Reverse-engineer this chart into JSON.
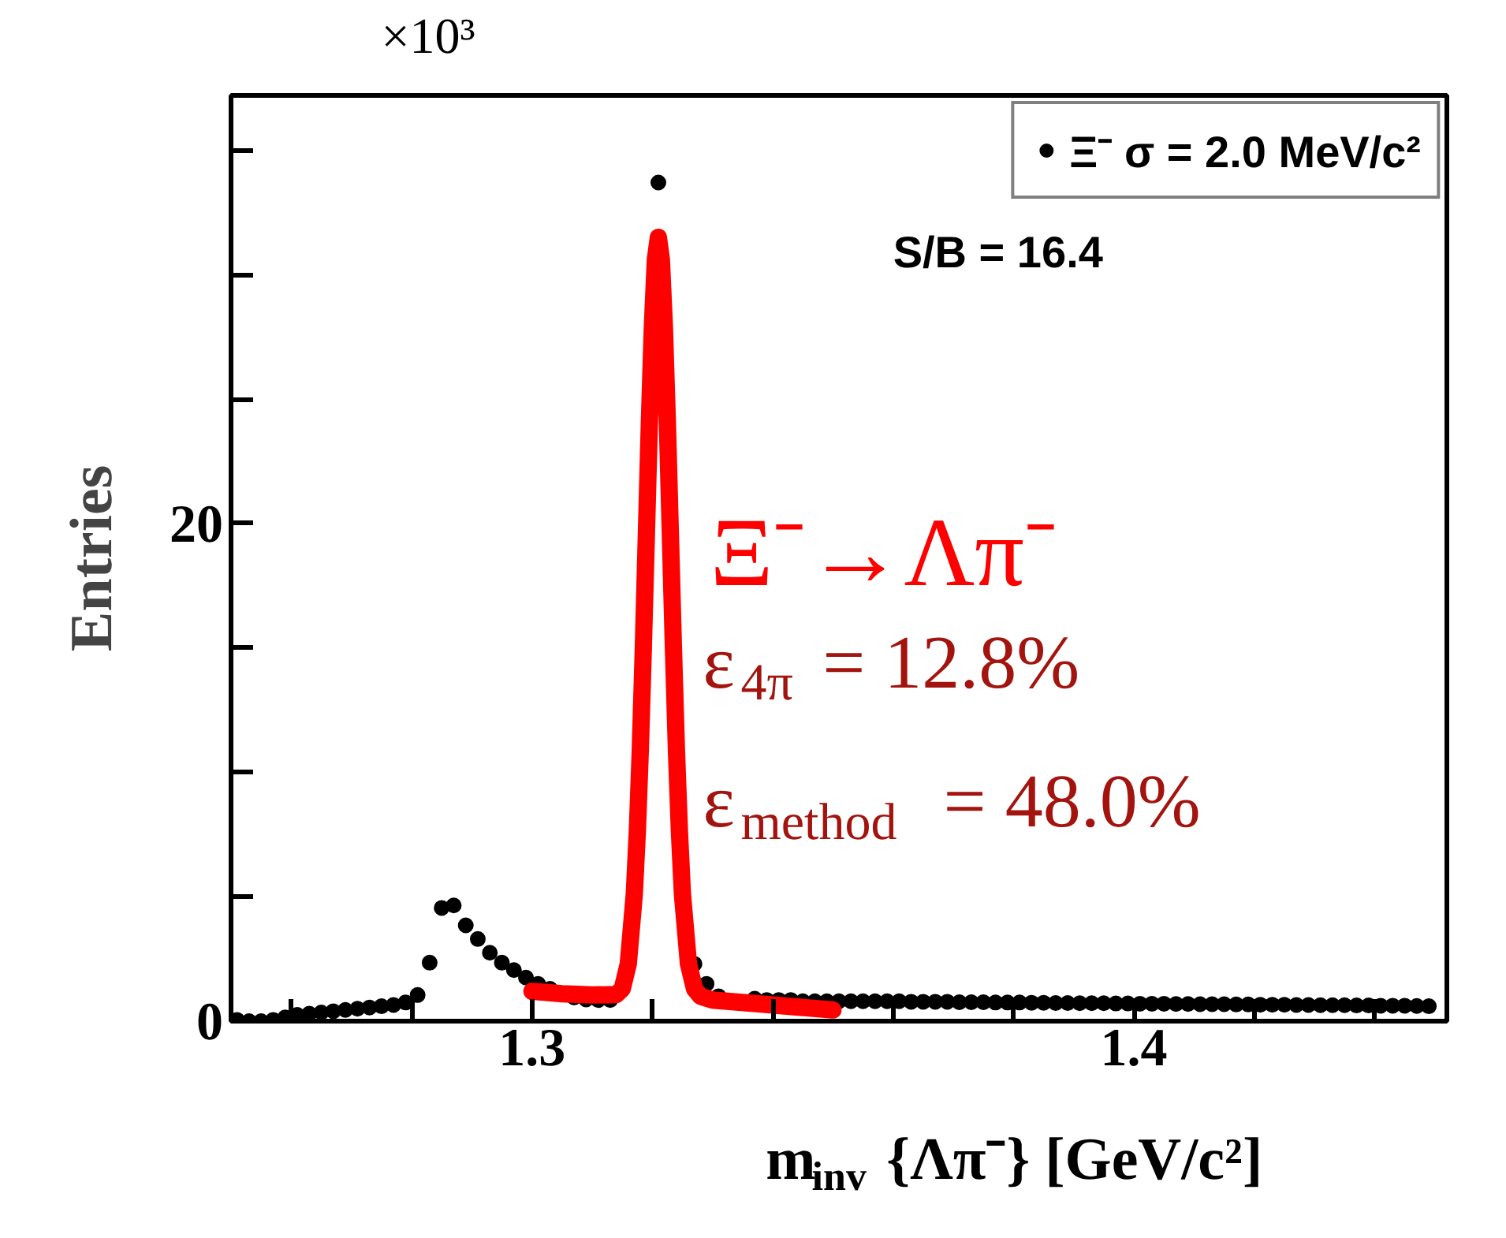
{
  "chart_data": {
    "type": "scatter",
    "xlabel": "m$_{inv}$ {Λπ⁻} [GeV/c²]",
    "ylabel": "Entries",
    "xlim": [
      1.25,
      1.452
    ],
    "ylim": [
      0,
      37.2
    ],
    "xticks": [
      {
        "value": 1.26,
        "label": null
      },
      {
        "value": 1.28,
        "label": null
      },
      1.3,
      {
        "value": 1.32,
        "label": null
      },
      {
        "value": 1.34,
        "label": null
      },
      {
        "value": 1.36,
        "label": null
      },
      {
        "value": 1.38,
        "label": null
      },
      1.4,
      {
        "value": 1.42,
        "label": null
      },
      {
        "value": 1.44,
        "label": null
      }
    ],
    "yticks": [
      0,
      {
        "value": 5,
        "label": null
      },
      {
        "value": 10,
        "label": null
      },
      {
        "value": 15,
        "label": null
      },
      20,
      {
        "value": 25,
        "label": null
      },
      {
        "value": 30,
        "label": null
      },
      {
        "value": 35,
        "label": null
      }
    ],
    "grid": false,
    "legend": "top right",
    "series": [
      {
        "name": "Ξ⁻ σ = 2.0 MeV/c²",
        "marker": "circle",
        "color": "#000000",
        "x": [
          1.251,
          1.253,
          1.255,
          1.257,
          1.259,
          1.261,
          1.263,
          1.265,
          1.267,
          1.269,
          1.271,
          1.273,
          1.275,
          1.277,
          1.279,
          1.281,
          1.283,
          1.285,
          1.287,
          1.289,
          1.291,
          1.293,
          1.295,
          1.297,
          1.299,
          1.301,
          1.303,
          1.305,
          1.307,
          1.309,
          1.311,
          1.313,
          1.315,
          1.317,
          1.319,
          1.321,
          1.323,
          1.325,
          1.327,
          1.329,
          1.331,
          1.333,
          1.335,
          1.337,
          1.339,
          1.341,
          1.343,
          1.345,
          1.347,
          1.349,
          1.351,
          1.353,
          1.355,
          1.357,
          1.359,
          1.361,
          1.363,
          1.365,
          1.367,
          1.369,
          1.371,
          1.373,
          1.375,
          1.377,
          1.379,
          1.381,
          1.383,
          1.385,
          1.387,
          1.389,
          1.391,
          1.393,
          1.395,
          1.397,
          1.399,
          1.401,
          1.403,
          1.405,
          1.407,
          1.409,
          1.411,
          1.413,
          1.415,
          1.417,
          1.419,
          1.421,
          1.423,
          1.425,
          1.427,
          1.429,
          1.431,
          1.433,
          1.435,
          1.437,
          1.439,
          1.441,
          1.443,
          1.445,
          1.447,
          1.449
        ],
        "values": [
          0.05,
          0.0,
          0.0,
          0.05,
          0.15,
          0.25,
          0.3,
          0.35,
          0.4,
          0.45,
          0.5,
          0.55,
          0.6,
          0.65,
          0.75,
          1.05,
          2.35,
          4.55,
          4.65,
          3.85,
          3.3,
          2.75,
          2.35,
          2.05,
          1.75,
          1.5,
          1.3,
          null,
          0.95,
          0.87,
          0.85,
          0.85,
          null,
          null,
          null,
          33.7,
          null,
          null,
          2.3,
          1.5,
          1.0,
          null,
          null,
          0.9,
          0.85,
          0.85,
          0.85,
          0.8,
          0.8,
          0.8,
          0.8,
          0.8,
          0.8,
          0.8,
          0.8,
          0.8,
          0.78,
          0.78,
          0.78,
          0.78,
          0.76,
          0.76,
          0.76,
          0.75,
          0.75,
          0.75,
          0.74,
          0.74,
          0.73,
          0.73,
          0.72,
          0.72,
          0.72,
          0.71,
          0.71,
          0.7,
          0.7,
          0.7,
          0.69,
          0.69,
          0.68,
          0.68,
          0.68,
          0.67,
          0.67,
          0.66,
          0.66,
          0.66,
          0.65,
          0.65,
          0.64,
          0.64,
          0.64,
          0.63,
          0.63,
          0.62,
          0.62,
          0.62,
          0.61,
          0.6
        ]
      },
      {
        "type": "line",
        "color": "#ff0000",
        "x": [
          1.3,
          1.305,
          1.31,
          1.314,
          1.315,
          1.316,
          1.317,
          1.3175,
          1.318,
          1.3185,
          1.319,
          1.3195,
          1.32,
          1.3205,
          1.321,
          1.3215,
          1.322,
          1.3225,
          1.323,
          1.3235,
          1.324,
          1.3245,
          1.325,
          1.326,
          1.327,
          1.328,
          1.33,
          1.34,
          1.35
        ],
        "values": [
          1.2,
          1.1,
          1.05,
          1.07,
          1.3,
          2.3,
          5.1,
          7.6,
          10.9,
          15.0,
          19.5,
          24.0,
          27.9,
          30.6,
          31.5,
          30.6,
          27.9,
          24.0,
          19.5,
          15.0,
          10.9,
          7.6,
          5.1,
          2.3,
          1.3,
          1.0,
          0.85,
          0.65,
          0.45
        ]
      }
    ],
    "annotations": [
      "×10³",
      "S/B = 16.4",
      "Ξ⁻→Λπ⁻",
      "ε$_{4π}$ = 12.8%",
      "ε$_{method}$ = 48.0%"
    ]
  }
}
